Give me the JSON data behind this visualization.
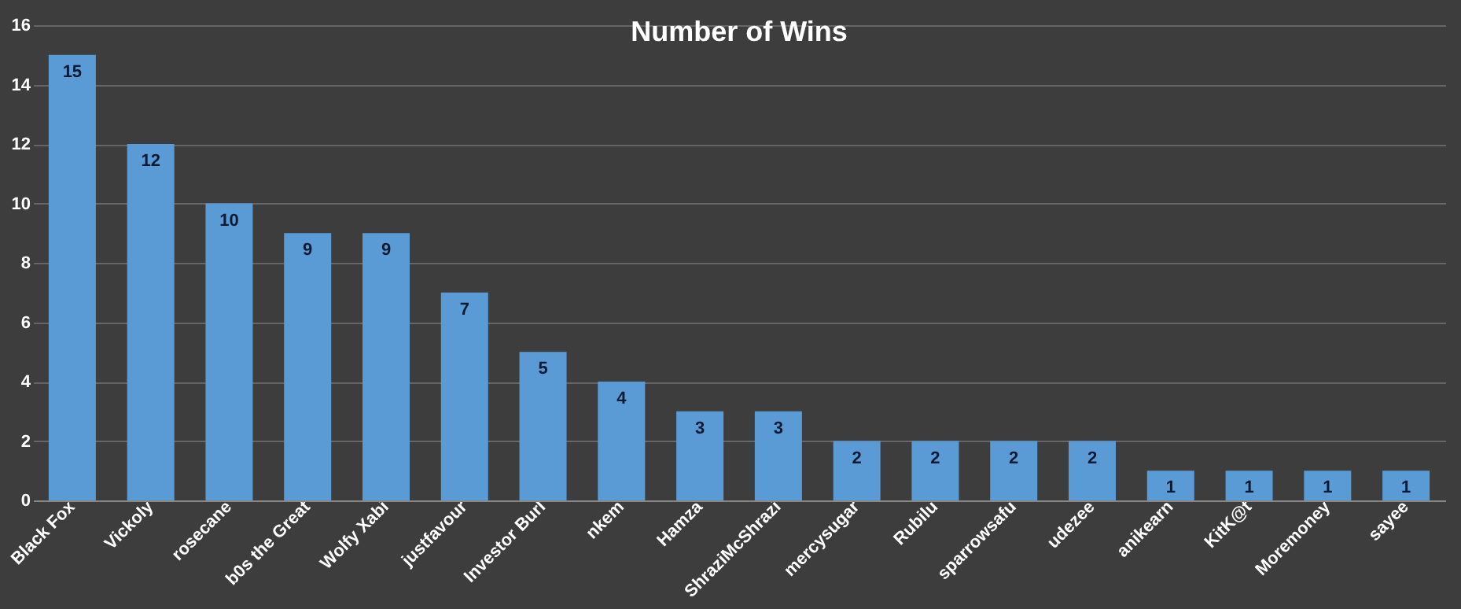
{
  "chart_data": {
    "type": "bar",
    "title": "Number  of Wins",
    "categories": [
      "Black Fox",
      "Vickoly",
      "rosecane",
      "b0s the Great",
      "Wolfy Xabi",
      "justfavour",
      "Investor Burl",
      "nkem",
      "Hamza",
      "ShraziMcShrazi",
      "mercysugar",
      "Rubilu",
      "sparrowsafu",
      "udezee",
      "anikearn",
      "KitK@t",
      "Moremoney",
      "sayee"
    ],
    "values": [
      15,
      12,
      10,
      9,
      9,
      7,
      5,
      4,
      3,
      3,
      2,
      2,
      2,
      2,
      1,
      1,
      1,
      1
    ],
    "color": "#5b9bd5",
    "ylim": [
      0,
      16
    ],
    "yticks": [
      0,
      2,
      4,
      6,
      8,
      10,
      12,
      14,
      16
    ],
    "grid": "y",
    "data_labels": true
  }
}
